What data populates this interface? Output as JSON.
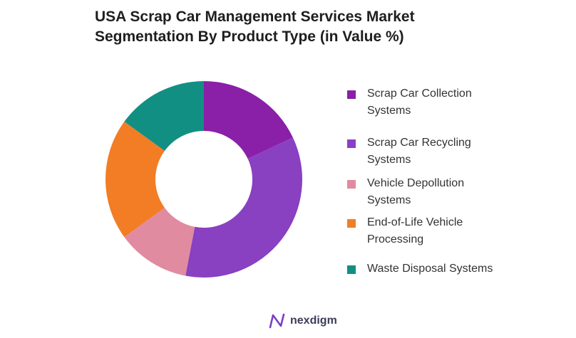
{
  "title_lines": [
    "USA Scrap Car Management Services Market",
    "Segmentation By Product Type (in Value %)"
  ],
  "chart_data": {
    "type": "pie",
    "variant": "donut",
    "title": "USA Scrap Car Management Services Market Segmentation By Product Type (in Value %)",
    "legend_position": "right",
    "categories": [
      "Scrap Car Collection Systems",
      "Scrap Car Recycling Systems",
      "Vehicle Depollution Systems",
      "End-of-Life Vehicle Processing",
      "Waste Disposal Systems"
    ],
    "values": [
      18,
      35,
      12,
      20,
      15
    ],
    "colors": [
      "#8a1fa8",
      "#8940c1",
      "#e08ba0",
      "#f27d25",
      "#128f83"
    ]
  },
  "legend": {
    "items": [
      {
        "label_lines": [
          "Scrap Car Collection",
          "Systems"
        ]
      },
      {
        "label_lines": [
          "Scrap Car Recycling",
          "Systems"
        ]
      },
      {
        "label_lines": [
          "Vehicle Depollution",
          "Systems"
        ]
      },
      {
        "label_lines": [
          "End-of-Life Vehicle",
          "Processing"
        ]
      },
      {
        "label_lines": [
          "Waste Disposal Systems"
        ]
      }
    ]
  },
  "logo": {
    "text": "nexdigm",
    "color": "#7b3fc4"
  }
}
